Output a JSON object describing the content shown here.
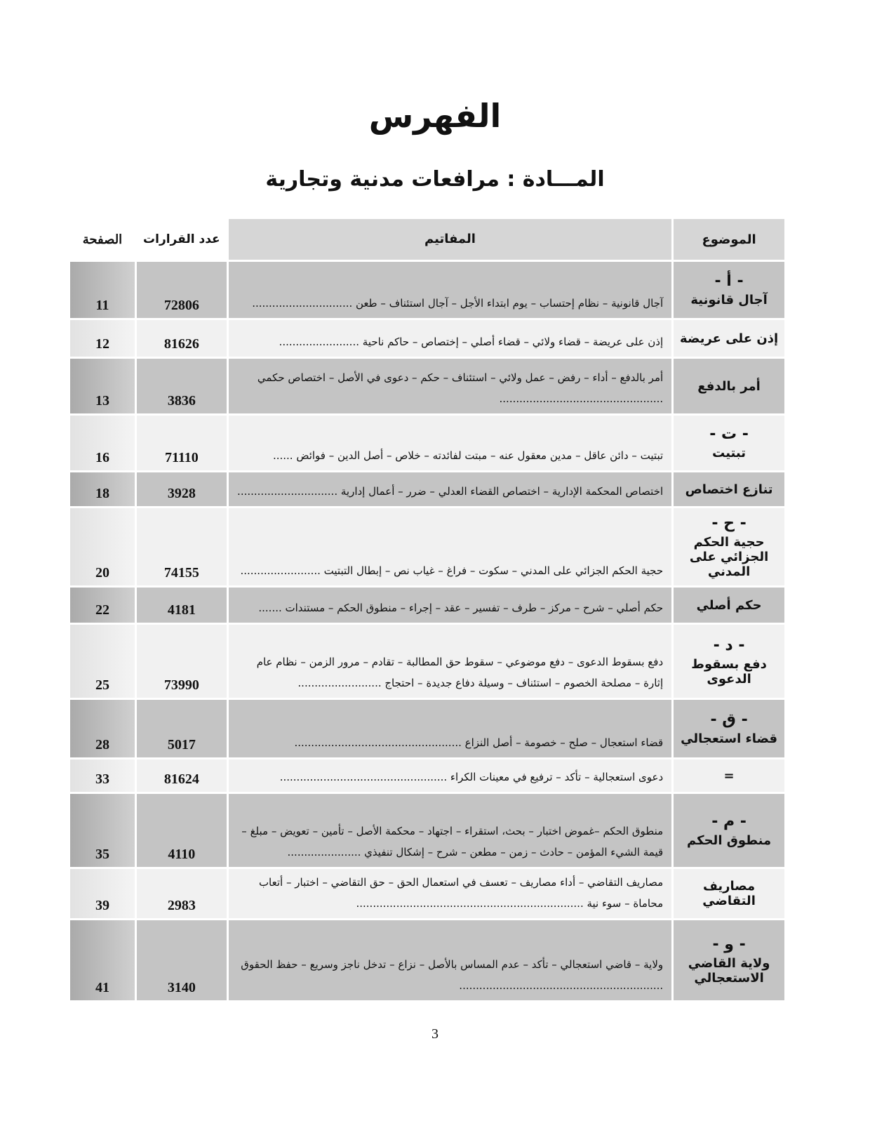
{
  "title": "الفهرس",
  "subtitle": "المـــادة : مرافعات مدنية وتجارية",
  "table": {
    "headers": {
      "subject": "الموضوع",
      "keywords": "المفاتيم",
      "count": "عدد القرارات",
      "page": "الصفحة"
    },
    "rows": [
      {
        "letter": "- أ -",
        "subject": "آجال قانونية",
        "keywords": "آجال قانونية – نظام إحتساب – يوم ابتداء الأجل – آجال استئناف – طعن ..............................",
        "count": "72806",
        "page": "11",
        "shade": "dark",
        "h": 80
      },
      {
        "letter": "",
        "subject": "إذن على عريضة",
        "keywords": "إذن على عريضة – قضاء ولائي – قضاء أصلي – إختصاص – حاكم ناحية ........................",
        "count": "81626",
        "page": "12",
        "shade": "light",
        "h": 52
      },
      {
        "letter": "",
        "subject": "أمر بالدفع",
        "keywords": "أمر بالدفع – أداء – رفض – عمل ولائي – استئناف – حكم – دعوى في الأصل – اختصاص حكمي .................................................",
        "count": "3836",
        "page": "13",
        "shade": "dark",
        "h": 78
      },
      {
        "letter": "- ت -",
        "subject": "تبتيت",
        "keywords": "تبتيت – دائن عاقل – مدين معقول عنه – مبتت لفائدته – خلاص – أصل الدين – فوائض ......",
        "count": "71110",
        "page": "16",
        "shade": "light",
        "h": 78
      },
      {
        "letter": "",
        "subject": "تنازع اختصاص",
        "keywords": "اختصاص المحكمة الإدارية – اختصاص القضاء العدلي – ضرر – أعمال إدارية ..............................",
        "count": "3928",
        "page": "18",
        "shade": "dark",
        "h": 48
      },
      {
        "letter": "- ح -",
        "subject": "حجية الحكم الجزائي على المدني",
        "keywords": "حجية الحكم الجزائي على المدني – سكوت – فراغ – غياب نص – إبطال التبتيت ........................",
        "count": "74155",
        "page": "20",
        "shade": "light",
        "h": 110
      },
      {
        "letter": "",
        "subject": "حكم أصلي",
        "keywords": "حكم أصلي – شرح – مركز – طرف – تفسير – عقد – إجراء – منطوق الحكم – مستندات .......",
        "count": "4181",
        "page": "22",
        "shade": "dark",
        "h": 50
      },
      {
        "letter": "- د -",
        "subject": "دفع بسقوط الدعوى",
        "keywords": "دفع بسقوط الدعوى – دفع موضوعي – سقوط حق المطالبة – تقادم – مرور الزمن – نظام عام إثارة – مصلحة الخصوم – استئناف – وسيلة دفاع جديدة – احتجاج .........................",
        "count": "73990",
        "page": "25",
        "shade": "light",
        "h": 104
      },
      {
        "letter": "- ق -",
        "subject": "قضاء استعجالي",
        "keywords": "قضاء استعجال – صلح – خصومة – أصل النزاع ..................................................",
        "count": "5017",
        "page": "28",
        "shade": "dark",
        "h": 82
      },
      {
        "letter": "",
        "subject": "=",
        "keywords": "دعوى استعجالية – تأكد – ترفيع في معينات الكراء ..................................................",
        "count": "81624",
        "page": "33",
        "shade": "light",
        "h": 46
      },
      {
        "letter": "- م -",
        "subject": "منطوق الحكم",
        "keywords": "منطوق الحكم –غموض اختبار – بحث، استقراء – اجتهاد – محكمة الأصل – تأمين – تعويض – مبلغ – قيمة الشيء المؤمن – حادث – زمن – مطعن – شرح – إشكال تنفيذي ......................",
        "count": "4110",
        "page": "35",
        "shade": "dark",
        "h": 104
      },
      {
        "letter": "",
        "subject": "مصاريف التقاضي",
        "keywords": "مصاريف التقاضي – أداء مصاريف – تعسف في استعمال الحق – حق التقاضي – اختبار – أتعاب محاماة – سوء نية ....................................................................",
        "count": "2983",
        "page": "39",
        "shade": "light",
        "h": 70
      },
      {
        "letter": "- و -",
        "subject": "ولاية القاضي الاستعجالي",
        "keywords": "ولاية – قاضي استعجالي – تأكد – عدم المساس بالأصل – نزاع – تدخل ناجز وسريع – حفظ الحقوق .............................................................",
        "count": "3140",
        "page": "41",
        "shade": "dark",
        "h": 114
      }
    ]
  },
  "page_number": "3"
}
